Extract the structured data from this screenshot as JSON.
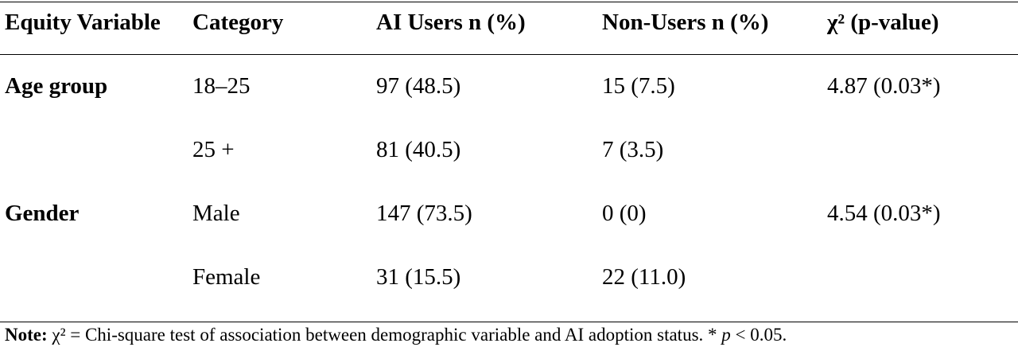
{
  "table": {
    "headers": [
      "Equity Variable",
      "Category",
      "AI Users n (%)",
      "Non-Users n (%)",
      "χ² (p-value)"
    ],
    "rows": [
      {
        "variable": "Age group",
        "category": "18–25",
        "ai_users": "97 (48.5)",
        "non_users": "15 (7.5)",
        "chi2": "4.87 (0.03*)"
      },
      {
        "variable": "",
        "category": "25 +",
        "ai_users": "81 (40.5)",
        "non_users": "7 (3.5)",
        "chi2": ""
      },
      {
        "variable": "Gender",
        "category": "Male",
        "ai_users": "147 (73.5)",
        "non_users": "0 (0)",
        "chi2": "4.54 (0.03*)"
      },
      {
        "variable": "",
        "category": "Female",
        "ai_users": "31 (15.5)",
        "non_users": "22 (11.0)",
        "chi2": ""
      }
    ]
  },
  "note": {
    "label": "Note:",
    "text": " χ² = Chi-square test of association between demographic variable and AI adoption status. * ",
    "p_symbol": "p",
    "threshold": " < 0.05."
  }
}
